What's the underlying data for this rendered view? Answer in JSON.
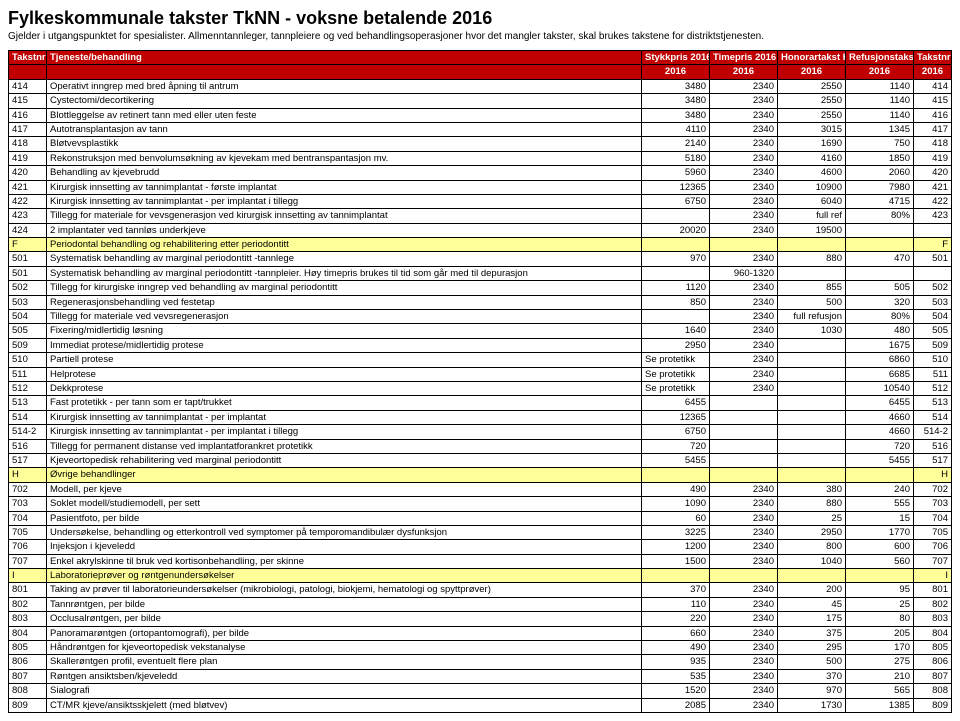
{
  "title": "Fylkeskommunale takster TkNN - voksne betalende 2016",
  "subtitle": "Gjelder i utgangspunktet for spesialister. Allmenntannleger, tannpleiere og ved behandlingsoperasjoner hvor det mangler takster, skal brukes takstene for distriktstjenesten.",
  "header": {
    "r1": [
      "Takstnr",
      "Tjeneste/behandling",
      "Stykkpris 2016",
      "Timepris 2016",
      "Honorartakst HELFO",
      "Refusjonstakst HELFO",
      "Takstnr"
    ],
    "r2": [
      "",
      "",
      "2016",
      "2016",
      "2016",
      "2016",
      "2016"
    ]
  },
  "colors": {
    "headerBg": "#c00000",
    "headerFg": "#ffffff",
    "sectionBg": "#ffff99"
  },
  "rows": [
    {
      "t": "414",
      "d": "Operativt inngrep med bred åpning til antrum",
      "c": [
        "3480",
        "2340",
        "2550",
        "1140",
        "414"
      ]
    },
    {
      "t": "415",
      "d": "Cystectomi/decortikering",
      "c": [
        "3480",
        "2340",
        "2550",
        "1140",
        "415"
      ]
    },
    {
      "t": "416",
      "d": "Blottleggelse av retinert tann med eller uten feste",
      "c": [
        "3480",
        "2340",
        "2550",
        "1140",
        "416"
      ]
    },
    {
      "t": "417",
      "d": "Autotransplantasjon av tann",
      "c": [
        "4110",
        "2340",
        "3015",
        "1345",
        "417"
      ]
    },
    {
      "t": "418",
      "d": "Bløtvevsplastikk",
      "c": [
        "2140",
        "2340",
        "1690",
        "750",
        "418"
      ]
    },
    {
      "t": "419",
      "d": "Rekonstruksjon med benvolumsøkning av kjevekam med bentranspantasjon mv.",
      "c": [
        "5180",
        "2340",
        "4160",
        "1850",
        "419"
      ]
    },
    {
      "t": "420",
      "d": "Behandling av kjevebrudd",
      "c": [
        "5960",
        "2340",
        "4600",
        "2060",
        "420"
      ]
    },
    {
      "t": "421",
      "d": "Kirurgisk innsetting av tannimplantat - første implantat",
      "c": [
        "12365",
        "2340",
        "10900",
        "7980",
        "421"
      ]
    },
    {
      "t": "422",
      "d": "Kirurgisk innsetting av tannimplantat -  per implantat i tillegg",
      "c": [
        "6750",
        "2340",
        "6040",
        "4715",
        "422"
      ]
    },
    {
      "t": "423",
      "d": "Tillegg for materiale for vevsgenerasjon ved kirurgisk innsetting av tannimplantat",
      "c": [
        "",
        "2340",
        "full ref",
        "80%",
        "423"
      ]
    },
    {
      "t": "424",
      "d": "2 implantater ved tannløs underkjeve",
      "c": [
        "20020",
        "2340",
        "19500",
        "",
        ""
      ]
    },
    {
      "t": "F",
      "d": "Periodontal behandling og rehabilitering etter periodontitt",
      "c": [
        "",
        "",
        "",
        "",
        "F"
      ],
      "section": true
    },
    {
      "t": "501",
      "d": "Systematisk behandling av marginal periodontitt -tannlege",
      "c": [
        "970",
        "2340",
        "880",
        "470",
        "501"
      ]
    },
    {
      "t": "501",
      "d": "Systematisk behandling av marginal periodontitt -tannpleier. Høy timepris brukes til tid som går med til depurasjon",
      "c": [
        "",
        "960-1320",
        "",
        "",
        ""
      ]
    },
    {
      "t": "502",
      "d": "Tillegg for kirurgiske inngrep ved behandling av marginal periodontitt",
      "c": [
        "1120",
        "2340",
        "855",
        "505",
        "502"
      ]
    },
    {
      "t": "503",
      "d": "Regenerasjonsbehandling ved festetap",
      "c": [
        "850",
        "2340",
        "500",
        "320",
        "503"
      ]
    },
    {
      "t": "504",
      "d": "Tillegg for materiale ved vevsregenerasjon",
      "c": [
        "",
        "2340",
        "full refusjon",
        "80%",
        "504"
      ]
    },
    {
      "t": "505",
      "d": "Fixering/midlertidig løsning",
      "c": [
        "1640",
        "2340",
        "1030",
        "480",
        "505"
      ]
    },
    {
      "t": "509",
      "d": "Immediat protese/midlertidig protese",
      "c": [
        "2950",
        "2340",
        "",
        "1675",
        "509"
      ]
    },
    {
      "t": "510",
      "d": "Partiell protese",
      "c": [
        "Se protetikk",
        "2340",
        "",
        "6860",
        "510"
      ]
    },
    {
      "t": "511",
      "d": "Helprotese",
      "c": [
        "Se protetikk",
        "2340",
        "",
        "6685",
        "511"
      ]
    },
    {
      "t": "512",
      "d": "Dekkprotese",
      "c": [
        "Se protetikk",
        "2340",
        "",
        "10540",
        "512"
      ]
    },
    {
      "t": "513",
      "d": "Fast protetikk - per tann som er tapt/trukket",
      "c": [
        "6455",
        "",
        "",
        "6455",
        "513"
      ]
    },
    {
      "t": "514",
      "d": "Kirurgisk innsetting av tannimplantat - per implantat",
      "c": [
        "12365",
        "",
        "",
        "4660",
        "514"
      ]
    },
    {
      "t": "514-2",
      "d": "Kirurgisk innsetting av tannimplantat - per implantat i tillegg",
      "c": [
        "6750",
        "",
        "",
        "4660",
        "514-2"
      ]
    },
    {
      "t": "516",
      "d": "Tillegg for permanent distanse ved implantatforankret protetikk",
      "c": [
        "720",
        "",
        "",
        "720",
        "516"
      ]
    },
    {
      "t": "517",
      "d": "Kjeveortopedisk rehabilitering ved marginal periodontitt",
      "c": [
        "5455",
        "",
        "",
        "5455",
        "517"
      ]
    },
    {
      "t": "H",
      "d": "Øvrige behandlinger",
      "c": [
        "",
        "",
        "",
        "",
        "H"
      ],
      "section": true
    },
    {
      "t": "702",
      "d": "Modell, per kjeve",
      "c": [
        "490",
        "2340",
        "380",
        "240",
        "702"
      ]
    },
    {
      "t": "703",
      "d": "Soklet modell/studiemodell, per sett",
      "c": [
        "1090",
        "2340",
        "880",
        "555",
        "703"
      ]
    },
    {
      "t": "704",
      "d": "Pasientfoto, per bilde",
      "c": [
        "60",
        "2340",
        "25",
        "15",
        "704"
      ]
    },
    {
      "t": "705",
      "d": "Undersøkelse, behandling og etterkontroll ved symptomer på temporomandibulær dysfunksjon",
      "c": [
        "3225",
        "2340",
        "2950",
        "1770",
        "705"
      ]
    },
    {
      "t": "706",
      "d": "Injeksjon i kjeveledd",
      "c": [
        "1200",
        "2340",
        "800",
        "600",
        "706"
      ]
    },
    {
      "t": "707",
      "d": "Enkel akrylskinne til bruk ved kortisonbehandling, per skinne",
      "c": [
        "1500",
        "2340",
        "1040",
        "560",
        "707"
      ]
    },
    {
      "t": "I",
      "d": "Laboratorieprøver og røntgenundersøkelser",
      "c": [
        "",
        "",
        "",
        "",
        "I"
      ],
      "section": true
    },
    {
      "t": "801",
      "d": "Taking av prøver til laboratorieundersøkelser (mikrobiologi, patologi, biokjemi, hematologi og spyttprøver)",
      "c": [
        "370",
        "2340",
        "200",
        "95",
        "801"
      ]
    },
    {
      "t": "802",
      "d": "Tannrøntgen, per bilde",
      "c": [
        "110",
        "2340",
        "45",
        "25",
        "802"
      ]
    },
    {
      "t": "803",
      "d": "Occlusalrøntgen, per bilde",
      "c": [
        "220",
        "2340",
        "175",
        "80",
        "803"
      ]
    },
    {
      "t": "804",
      "d": "Panoramarøntgen (ortopantomografi), per bilde",
      "c": [
        "660",
        "2340",
        "375",
        "205",
        "804"
      ]
    },
    {
      "t": "805",
      "d": "Håndrøntgen for kjeveortopedisk vekstanalyse",
      "c": [
        "490",
        "2340",
        "295",
        "170",
        "805"
      ]
    },
    {
      "t": "806",
      "d": "Skallerøntgen profil, eventuelt flere plan",
      "c": [
        "935",
        "2340",
        "500",
        "275",
        "806"
      ]
    },
    {
      "t": "807",
      "d": "Røntgen ansiktsben/kjeveledd",
      "c": [
        "535",
        "2340",
        "370",
        "210",
        "807"
      ]
    },
    {
      "t": "808",
      "d": "Sialografi",
      "c": [
        "1520",
        "2340",
        "970",
        "565",
        "808"
      ]
    },
    {
      "t": "809",
      "d": "CT/MR kjeve/ansiktsskjelett (med bløtvev)",
      "c": [
        "2085",
        "2340",
        "1730",
        "1385",
        "809"
      ]
    }
  ]
}
